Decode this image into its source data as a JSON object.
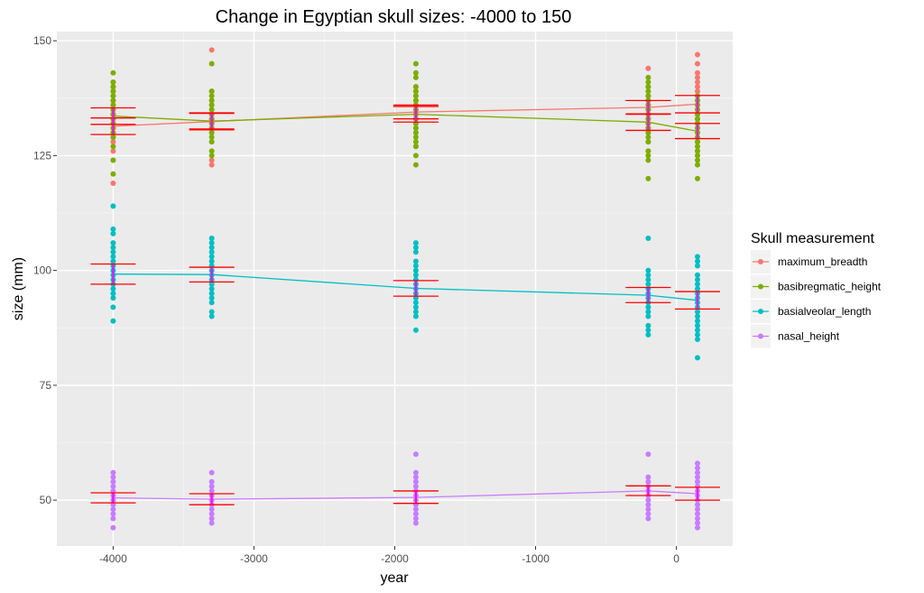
{
  "chart_data": {
    "type": "scatter",
    "title": "Change in Egyptian skull sizes: -4000 to 150",
    "xlabel": "year",
    "ylabel": "size (mm)",
    "xlim": [
      -4400,
      400
    ],
    "ylim": [
      40,
      152
    ],
    "x_ticks": [
      -4000,
      -3000,
      -2000,
      -1000,
      0
    ],
    "x_tick_labels": [
      "-4000",
      "-3000",
      "-2000",
      "-1000",
      "0"
    ],
    "y_ticks": [
      50,
      75,
      100,
      125,
      150
    ],
    "y_tick_labels": [
      "50",
      "75",
      "100",
      "125",
      "150"
    ],
    "grid": true,
    "legend_title": "Skull measurement",
    "legend_position": "right",
    "years": [
      -4000,
      -3300,
      -1850,
      -200,
      150
    ],
    "series": [
      {
        "name": "maximum_breadth",
        "color": "#F8766D",
        "points": {
          "-4000": [
            119,
            124,
            126,
            128,
            129,
            130,
            131,
            132,
            133,
            134,
            135,
            136,
            137,
            138,
            139,
            140,
            141
          ],
          "-3300": [
            123,
            124,
            128,
            130,
            131,
            132,
            133,
            134,
            135,
            136,
            137,
            139,
            148
          ],
          "-1850": [
            127,
            130,
            131,
            132,
            133,
            134,
            135,
            136,
            137,
            138,
            139,
            140
          ],
          "-200": [
            126,
            128,
            130,
            131,
            132,
            133,
            134,
            135,
            136,
            137,
            138,
            140,
            144
          ],
          "150": [
            126,
            128,
            130,
            131,
            132,
            133,
            134,
            135,
            136,
            137,
            138,
            139,
            140,
            141,
            142,
            143,
            145,
            147
          ]
        },
        "means": [
          131.4,
          132.4,
          134.5,
          135.5,
          136.2
        ],
        "ci_low": [
          129.6,
          130.6,
          133.0,
          134.0,
          134.3
        ],
        "ci_high": [
          133.2,
          134.2,
          136.0,
          137.0,
          138.1
        ]
      },
      {
        "name": "basibregmatic_height",
        "color": "#7CAE00",
        "points": {
          "-4000": [
            121,
            124,
            127,
            129,
            130,
            131,
            132,
            133,
            134,
            135,
            136,
            137,
            138,
            139,
            140,
            141,
            143
          ],
          "-3300": [
            125,
            126,
            128,
            129,
            130,
            131,
            132,
            133,
            134,
            135,
            136,
            137,
            138,
            139,
            145
          ],
          "-1850": [
            123,
            125,
            127,
            128,
            129,
            130,
            131,
            132,
            133,
            134,
            135,
            136,
            137,
            138,
            139,
            140,
            142,
            143,
            145
          ],
          "-200": [
            120,
            124,
            125,
            126,
            128,
            129,
            130,
            131,
            132,
            133,
            134,
            135,
            136,
            137,
            138,
            139,
            140,
            141,
            142
          ],
          "150": [
            120,
            123,
            124,
            125,
            126,
            127,
            128,
            129,
            130,
            131,
            132,
            133,
            134,
            135,
            136,
            137,
            138
          ]
        },
        "means": [
          133.6,
          132.5,
          134.0,
          132.3,
          130.3
        ],
        "ci_low": [
          131.8,
          130.8,
          132.3,
          130.5,
          128.7
        ],
        "ci_high": [
          135.4,
          134.3,
          135.7,
          134.1,
          132.0
        ]
      },
      {
        "name": "basialveolar_length",
        "color": "#00BFC4",
        "points": {
          "-4000": [
            89,
            92,
            94,
            95,
            96,
            97,
            98,
            99,
            100,
            101,
            102,
            103,
            104,
            105,
            106,
            108,
            109,
            114
          ],
          "-3300": [
            90,
            91,
            93,
            94,
            95,
            96,
            97,
            98,
            99,
            100,
            101,
            102,
            103,
            104,
            105,
            106,
            107
          ],
          "-1850": [
            87,
            90,
            91,
            92,
            93,
            94,
            95,
            96,
            97,
            98,
            99,
            100,
            101,
            102,
            104,
            105,
            106
          ],
          "-200": [
            86,
            87,
            88,
            90,
            91,
            92,
            93,
            94,
            95,
            96,
            97,
            98,
            99,
            100,
            107
          ],
          "150": [
            81,
            85,
            86,
            87,
            88,
            89,
            90,
            91,
            92,
            93,
            94,
            95,
            96,
            97,
            98,
            99,
            101,
            102,
            103
          ]
        },
        "means": [
          99.2,
          99.1,
          96.1,
          94.6,
          93.5
        ],
        "ci_low": [
          97.0,
          97.5,
          94.4,
          93.0,
          91.6
        ],
        "ci_high": [
          101.4,
          100.7,
          97.8,
          96.3,
          95.4
        ]
      },
      {
        "name": "nasal_height",
        "color": "#C77CFF",
        "points": {
          "-4000": [
            44,
            46,
            47,
            48,
            49,
            50,
            51,
            52,
            53,
            54,
            55,
            56
          ],
          "-3300": [
            45,
            46,
            47,
            48,
            49,
            50,
            51,
            52,
            53,
            54,
            56
          ],
          "-1850": [
            45,
            46,
            47,
            48,
            49,
            50,
            51,
            52,
            53,
            54,
            55,
            56,
            60
          ],
          "-200": [
            46,
            47,
            48,
            49,
            50,
            51,
            52,
            53,
            54,
            55,
            60
          ],
          "150": [
            44,
            45,
            46,
            47,
            48,
            49,
            50,
            51,
            52,
            53,
            54,
            55,
            56,
            57,
            58
          ]
        },
        "means": [
          50.5,
          50.2,
          50.6,
          52.0,
          51.4
        ],
        "ci_low": [
          49.4,
          49.0,
          49.3,
          51.0,
          50.0
        ],
        "ci_high": [
          51.6,
          51.4,
          52.0,
          53.1,
          52.8
        ]
      }
    ],
    "errorbar_color": "#FF0000",
    "mean_bar_color": "#FF00FF"
  }
}
